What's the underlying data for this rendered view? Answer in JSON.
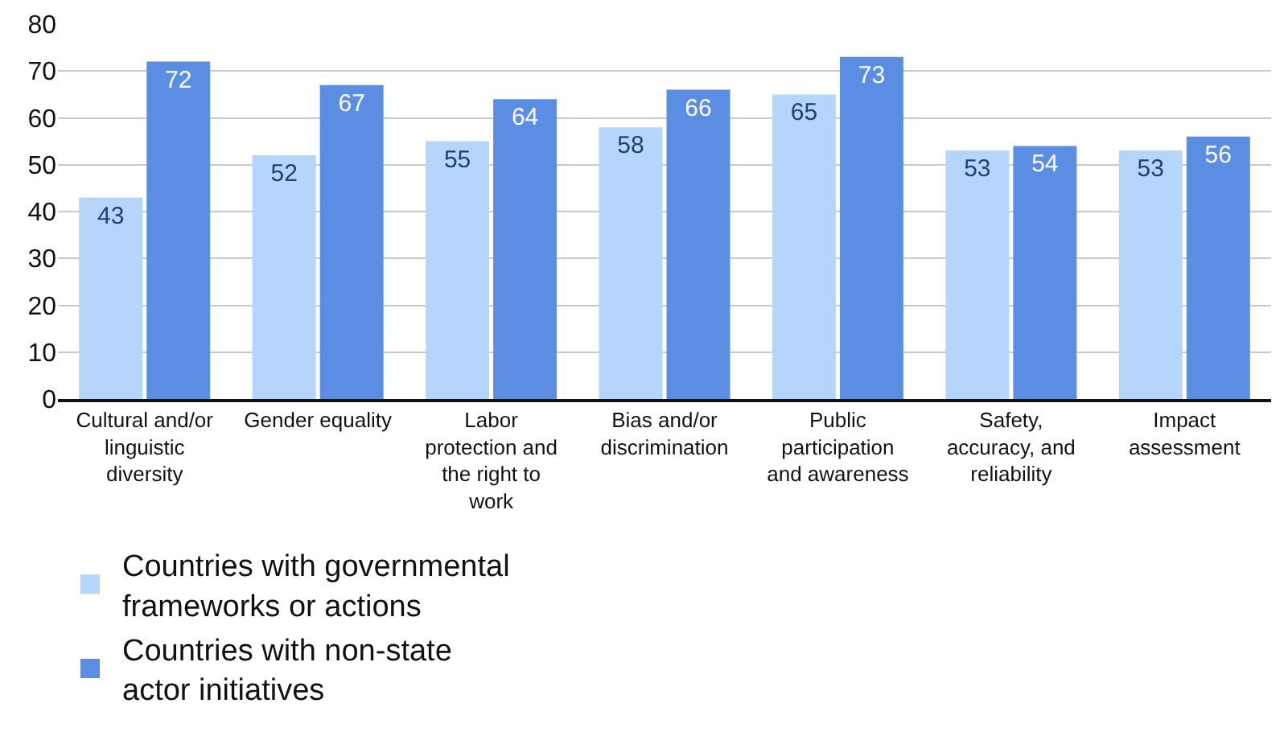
{
  "chart_data": {
    "type": "bar",
    "categories": [
      "Cultural and/or linguistic diversity",
      "Gender equality",
      "Labor protection and the right to work",
      "Bias and/or discrimination",
      "Public participation and awareness",
      "Safety, accuracy, and reliability",
      "Impact assessment"
    ],
    "series": [
      {
        "name": "Countries with governmental frameworks or actions",
        "color": "#b5d5fb",
        "values": [
          43,
          52,
          55,
          58,
          65,
          53,
          53
        ]
      },
      {
        "name": "Countries with non-state actor initiatives",
        "color": "#5b8ee2",
        "values": [
          72,
          67,
          64,
          66,
          73,
          54,
          56
        ]
      }
    ],
    "ylim": [
      0,
      80
    ],
    "yticks": [
      0,
      10,
      20,
      30,
      40,
      50,
      60,
      70,
      80
    ],
    "grid": "y",
    "legend": "bottom",
    "data_labels": true
  }
}
